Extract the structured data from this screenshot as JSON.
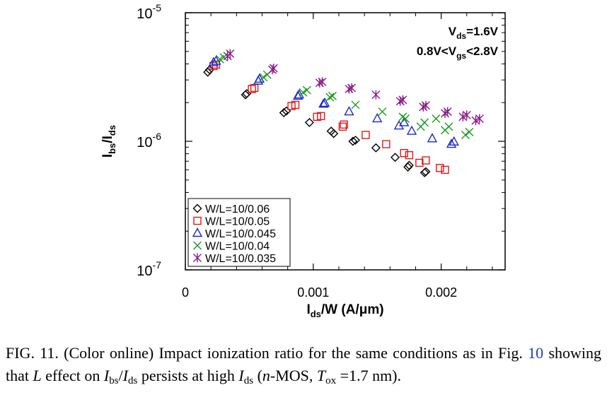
{
  "chart_data": {
    "type": "scatter",
    "title": "",
    "xlabel": {
      "main": "I",
      "sub": "ds",
      "rest": "/W (A/μm)"
    },
    "ylabel": {
      "main": "I",
      "sub1": "bs",
      "mid": "/I",
      "sub2": "ds"
    },
    "xlim": [
      0,
      0.0025
    ],
    "ylim": [
      1e-07,
      1e-05
    ],
    "yscale": "log",
    "grid": false,
    "x_ticks": [
      {
        "value": 0,
        "label": "0"
      },
      {
        "value": 0.001,
        "label": "0.001"
      },
      {
        "value": 0.002,
        "label": "0.002"
      }
    ],
    "y_ticks": [
      {
        "value": 1e-07,
        "base": "10",
        "exp": "-7"
      },
      {
        "value": 1e-06,
        "base": "10",
        "exp": "-6"
      },
      {
        "value": 1e-05,
        "base": "10",
        "exp": "-5"
      }
    ],
    "annotations": {
      "vds": {
        "main": "V",
        "sub": "ds",
        "rest": "=1.6V"
      },
      "vgs": {
        "pre": "0.8V<V",
        "sub": "gs",
        "rest": "<2.8V"
      }
    },
    "legend_position": "bottom-left",
    "series": [
      {
        "name": "W/L=10/0.06",
        "marker": "diamond",
        "color": "#000000",
        "points": [
          [
            0.000175,
            3.45e-06
          ],
          [
            0.00019,
            3.6e-06
          ],
          [
            0.00047,
            2.3e-06
          ],
          [
            0.00048,
            2.35e-06
          ],
          [
            0.00077,
            1.67e-06
          ],
          [
            0.00079,
            1.72e-06
          ],
          [
            0.00097,
            1.4e-06
          ],
          [
            0.00114,
            1.2e-06
          ],
          [
            0.00116,
            1.15e-06
          ],
          [
            0.00131,
            1e-06
          ],
          [
            0.00133,
            1.02e-06
          ],
          [
            0.00149,
            8.9e-07
          ],
          [
            0.00164,
            7.5e-07
          ],
          [
            0.00175,
            6.5e-07
          ],
          [
            0.00174,
            6.3e-07
          ],
          [
            0.00188,
            5.8e-07
          ],
          [
            0.00187,
            5.7e-07
          ]
        ]
      },
      {
        "name": "W/L=10/0.05",
        "marker": "square",
        "color": "#e01818",
        "points": [
          [
            0.00022,
            3.85e-06
          ],
          [
            0.00024,
            3.95e-06
          ],
          [
            0.00052,
            2.55e-06
          ],
          [
            0.00054,
            2.6e-06
          ],
          [
            0.00083,
            1.88e-06
          ],
          [
            0.00086,
            1.92e-06
          ],
          [
            0.00103,
            1.55e-06
          ],
          [
            0.00106,
            1.57e-06
          ],
          [
            0.00123,
            1.3e-06
          ],
          [
            0.00124,
            1.35e-06
          ],
          [
            0.00141,
            1.12e-06
          ],
          [
            0.00157,
            9.5e-07
          ],
          [
            0.00171,
            8.1e-07
          ],
          [
            0.00175,
            7.8e-07
          ],
          [
            0.00183,
            6.8e-07
          ],
          [
            0.00188,
            7.1e-07
          ],
          [
            0.00199,
            6.2e-07
          ],
          [
            0.00203,
            6e-07
          ]
        ]
      },
      {
        "name": "W/L=10/0.045",
        "marker": "triangle",
        "color": "#1a28d0",
        "points": [
          [
            0.00022,
            4.1e-06
          ],
          [
            0.00024,
            4.2e-06
          ],
          [
            0.00057,
            2.95e-06
          ],
          [
            0.00058,
            3.05e-06
          ],
          [
            0.00088,
            2.25e-06
          ],
          [
            0.00089,
            2.3e-06
          ],
          [
            0.00108,
            1.95e-06
          ],
          [
            0.00109,
            1.98e-06
          ],
          [
            0.00128,
            1.7e-06
          ],
          [
            0.0015,
            1.5e-06
          ],
          [
            0.00167,
            1.32e-06
          ],
          [
            0.00171,
            1.4e-06
          ],
          [
            0.00177,
            1.2e-06
          ],
          [
            0.00193,
            1.05e-06
          ],
          [
            0.00208,
            9.5e-07
          ],
          [
            0.0021,
            9.9e-07
          ]
        ]
      },
      {
        "name": "W/L=10/0.04",
        "marker": "x",
        "color": "#1a9a1a",
        "points": [
          [
            0.00027,
            4.35e-06
          ],
          [
            0.0003,
            4.5e-06
          ],
          [
            0.00061,
            3.15e-06
          ],
          [
            0.00064,
            3.3e-06
          ],
          [
            0.00092,
            2.4e-06
          ],
          [
            0.00095,
            2.5e-06
          ],
          [
            0.00113,
            2.2e-06
          ],
          [
            0.00115,
            2.25e-06
          ],
          [
            0.00133,
            1.92e-06
          ],
          [
            0.00154,
            1.7e-06
          ],
          [
            0.0017,
            1.55e-06
          ],
          [
            0.00172,
            1.5e-06
          ],
          [
            0.00184,
            1.3e-06
          ],
          [
            0.00187,
            1.4e-06
          ],
          [
            0.00196,
            1.5e-06
          ],
          [
            0.00203,
            1.22e-06
          ],
          [
            0.00206,
            1.3e-06
          ],
          [
            0.00219,
            1.12e-06
          ],
          [
            0.00222,
            1.18e-06
          ]
        ]
      },
      {
        "name": "W/L=10/0.035",
        "marker": "asterisk",
        "color": "#8a1a8a",
        "points": [
          [
            0.00033,
            4.6e-06
          ],
          [
            0.00035,
            4.8e-06
          ],
          [
            0.00068,
            3.6e-06
          ],
          [
            0.00069,
            3.7e-06
          ],
          [
            0.00105,
            2.85e-06
          ],
          [
            0.00107,
            2.9e-06
          ],
          [
            0.00128,
            2.55e-06
          ],
          [
            0.0013,
            2.6e-06
          ],
          [
            0.00149,
            2.3e-06
          ],
          [
            0.00168,
            2.05e-06
          ],
          [
            0.0017,
            2.1e-06
          ],
          [
            0.00186,
            1.85e-06
          ],
          [
            0.00188,
            1.9e-06
          ],
          [
            0.00203,
            1.65e-06
          ],
          [
            0.00205,
            1.7e-06
          ],
          [
            0.00217,
            1.55e-06
          ],
          [
            0.0022,
            1.6e-06
          ],
          [
            0.00227,
            1.45e-06
          ],
          [
            0.0023,
            1.5e-06
          ]
        ]
      }
    ]
  },
  "caption": {
    "fig_label": "FIG. 11.",
    "text_1": "(Color online) Impact ionization ratio for the same conditions as in Fig.",
    "link": "10",
    "text_2": "showing that",
    "L": "L",
    "text_3": "effect on",
    "ibs_I": "I",
    "ibs_sub": "bs",
    "slash": "/",
    "ids_I": "I",
    "ids_sub": "ds",
    "text_4": "persists at high",
    "ids2_I": "I",
    "ids2_sub": "ds",
    "text_5": "(",
    "n": "n",
    "text_6": "-MOS,",
    "T": "T",
    "T_sub": "ox",
    "text_7": "=1.7 nm)."
  }
}
